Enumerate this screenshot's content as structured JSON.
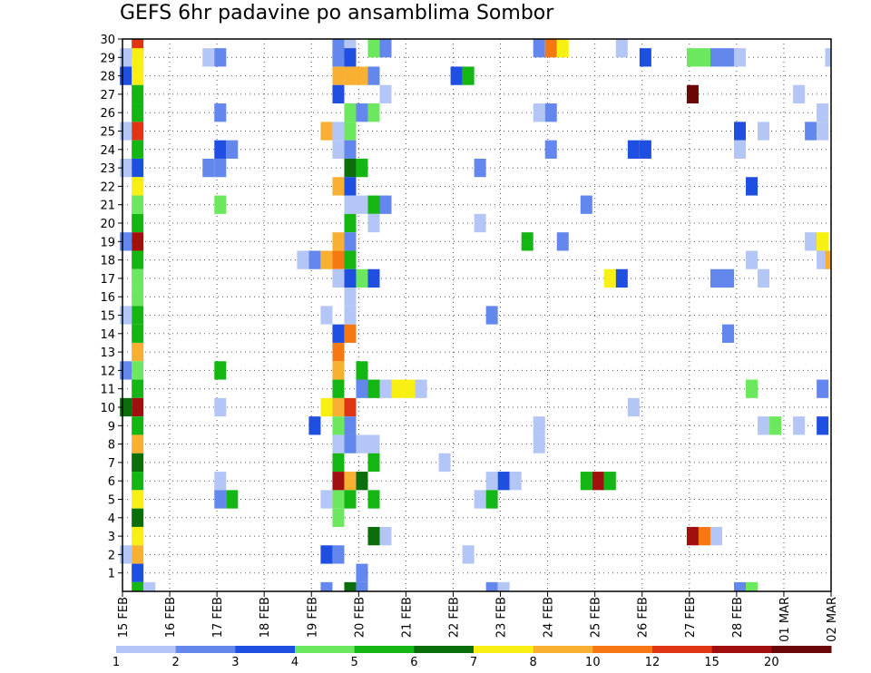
{
  "chart_data": {
    "type": "heatmap",
    "title": "GEFS 6hr padavine po ansamblima Sombor",
    "x_tick_labels": [
      "15 FEB",
      "16 FEB",
      "17 FEB",
      "18 FEB",
      "19 FEB",
      "20 FEB",
      "21 FEB",
      "22 FEB",
      "23 FEB",
      "24 FEB",
      "25 FEB",
      "26 FEB",
      "27 FEB",
      "28 FEB",
      "01 MAR",
      "02 MAR"
    ],
    "xlim": [
      0,
      15
    ],
    "y_tick_labels": [
      "1",
      "2",
      "3",
      "4",
      "5",
      "6",
      "7",
      "8",
      "9",
      "10",
      "11",
      "12",
      "13",
      "14",
      "15",
      "16",
      "17",
      "18",
      "19",
      "20",
      "21",
      "22",
      "23",
      "24",
      "25",
      "26",
      "27",
      "28",
      "29",
      "30"
    ],
    "ylim": [
      0,
      30
    ],
    "grid": "dotted",
    "colorbar": {
      "labels": [
        "1",
        "2",
        "3",
        "4",
        "5",
        "6",
        "7",
        "8",
        "10",
        "12",
        "15",
        "20"
      ],
      "colors": [
        "#b3c6f5",
        "#6487ee",
        "#1f4fe0",
        "#6ce85e",
        "#14b614",
        "#0a6e0a",
        "#f7f012",
        "#f9b032",
        "#f57812",
        "#e03512",
        "#a10f0f",
        "#6a0707"
      ]
    },
    "cells": [
      [
        0.32,
        30,
        9
      ],
      [
        0.32,
        29,
        6
      ],
      [
        0.32,
        28,
        6
      ],
      [
        0.32,
        27,
        4
      ],
      [
        0.32,
        26,
        4
      ],
      [
        0.32,
        25,
        9
      ],
      [
        0.32,
        24,
        4
      ],
      [
        0.32,
        23,
        2
      ],
      [
        0.32,
        22,
        6
      ],
      [
        0.32,
        21,
        3
      ],
      [
        0.32,
        20,
        4
      ],
      [
        0.32,
        19,
        10
      ],
      [
        0.32,
        18,
        4
      ],
      [
        0.32,
        17,
        3
      ],
      [
        0.32,
        16,
        3
      ],
      [
        0.32,
        15,
        4
      ],
      [
        0.32,
        14,
        4
      ],
      [
        0.32,
        13,
        7
      ],
      [
        0.32,
        12,
        3
      ],
      [
        0.32,
        11,
        4
      ],
      [
        0.32,
        10,
        10
      ],
      [
        0.32,
        9,
        4
      ],
      [
        0.32,
        8,
        7
      ],
      [
        0.32,
        7,
        5
      ],
      [
        0.32,
        6,
        4
      ],
      [
        0.32,
        5,
        6
      ],
      [
        0.32,
        4,
        5
      ],
      [
        0.32,
        3,
        6
      ],
      [
        0.32,
        2,
        7
      ],
      [
        0.32,
        1,
        2
      ],
      [
        0.32,
        0,
        4
      ],
      [
        0.07,
        29,
        0
      ],
      [
        0.07,
        28,
        2
      ],
      [
        0.07,
        25,
        0
      ],
      [
        0.07,
        23,
        0
      ],
      [
        0.07,
        19,
        1
      ],
      [
        0.07,
        15,
        0
      ],
      [
        0.07,
        12,
        1
      ],
      [
        0.07,
        10,
        5
      ],
      [
        0.07,
        2,
        0
      ],
      [
        0.57,
        0,
        0
      ],
      [
        1.82,
        29,
        0
      ],
      [
        2.07,
        29,
        1
      ],
      [
        1.82,
        23,
        1
      ],
      [
        2.07,
        23,
        1
      ],
      [
        2.07,
        24,
        2
      ],
      [
        2.32,
        24,
        1
      ],
      [
        2.07,
        26,
        1
      ],
      [
        2.07,
        21,
        3
      ],
      [
        2.07,
        12,
        4
      ],
      [
        2.07,
        10,
        0
      ],
      [
        2.07,
        6,
        0
      ],
      [
        2.07,
        5,
        1
      ],
      [
        2.32,
        5,
        4
      ],
      [
        3.82,
        18,
        0
      ],
      [
        4.07,
        18,
        1
      ],
      [
        4.32,
        18,
        7
      ],
      [
        4.57,
        18,
        8
      ],
      [
        4.82,
        18,
        4
      ],
      [
        4.57,
        19,
        7
      ],
      [
        4.57,
        22,
        7
      ],
      [
        4.32,
        25,
        7
      ],
      [
        4.57,
        25,
        0
      ],
      [
        4.32,
        10,
        6
      ],
      [
        4.57,
        10,
        7
      ],
      [
        4.82,
        10,
        9
      ],
      [
        4.07,
        9,
        2
      ],
      [
        4.32,
        5,
        0
      ],
      [
        4.57,
        5,
        3
      ],
      [
        4.32,
        2,
        2
      ],
      [
        4.57,
        2,
        1
      ],
      [
        4.32,
        15,
        0
      ],
      [
        4.57,
        12,
        7
      ],
      [
        4.57,
        14,
        2
      ],
      [
        4.82,
        14,
        8
      ],
      [
        4.57,
        13,
        8
      ],
      [
        4.32,
        0,
        1
      ],
      [
        4.57,
        30,
        1
      ],
      [
        4.82,
        30,
        0
      ],
      [
        4.57,
        29,
        1
      ],
      [
        4.82,
        29,
        2
      ],
      [
        4.57,
        28,
        7
      ],
      [
        4.82,
        28,
        7
      ],
      [
        5.07,
        28,
        7
      ],
      [
        5.32,
        28,
        1
      ],
      [
        4.57,
        27,
        2
      ],
      [
        4.82,
        26,
        3
      ],
      [
        5.07,
        26,
        1
      ],
      [
        5.32,
        26,
        3
      ],
      [
        4.82,
        25,
        3
      ],
      [
        4.57,
        24,
        0
      ],
      [
        4.82,
        24,
        1
      ],
      [
        4.82,
        23,
        5
      ],
      [
        5.07,
        23,
        4
      ],
      [
        4.82,
        22,
        2
      ],
      [
        4.82,
        21,
        0
      ],
      [
        5.07,
        21,
        0
      ],
      [
        5.32,
        21,
        4
      ],
      [
        5.57,
        21,
        1
      ],
      [
        4.82,
        20,
        4
      ],
      [
        5.32,
        20,
        0
      ],
      [
        4.82,
        19,
        1
      ],
      [
        4.82,
        17,
        2
      ],
      [
        5.07,
        17,
        3
      ],
      [
        5.32,
        17,
        2
      ],
      [
        4.57,
        17,
        0
      ],
      [
        4.82,
        16,
        0
      ],
      [
        4.82,
        15,
        0
      ],
      [
        4.57,
        11,
        4
      ],
      [
        4.82,
        9,
        1
      ],
      [
        4.57,
        9,
        3
      ],
      [
        4.57,
        8,
        0
      ],
      [
        4.82,
        8,
        1
      ],
      [
        5.07,
        8,
        0
      ],
      [
        5.32,
        8,
        0
      ],
      [
        4.57,
        7,
        4
      ],
      [
        5.32,
        7,
        4
      ],
      [
        4.57,
        6,
        10
      ],
      [
        4.82,
        6,
        7
      ],
      [
        5.07,
        6,
        5
      ],
      [
        4.82,
        5,
        4
      ],
      [
        5.32,
        5,
        4
      ],
      [
        4.57,
        4,
        3
      ],
      [
        5.32,
        3,
        5
      ],
      [
        5.57,
        3,
        0
      ],
      [
        5.07,
        1,
        1
      ],
      [
        5.07,
        0,
        1
      ],
      [
        4.82,
        0,
        5
      ],
      [
        5.07,
        11,
        1
      ],
      [
        5.07,
        12,
        4
      ],
      [
        5.32,
        30,
        3
      ],
      [
        5.57,
        30,
        1
      ],
      [
        5.57,
        27,
        0
      ],
      [
        5.32,
        11,
        4
      ],
      [
        5.57,
        11,
        0
      ],
      [
        5.82,
        11,
        6
      ],
      [
        6.07,
        11,
        6
      ],
      [
        6.32,
        11,
        0
      ],
      [
        7.07,
        28,
        2
      ],
      [
        7.32,
        28,
        4
      ],
      [
        6.82,
        7,
        0
      ],
      [
        7.57,
        23,
        1
      ],
      [
        7.57,
        20,
        0
      ],
      [
        7.82,
        15,
        1
      ],
      [
        7.82,
        6,
        0
      ],
      [
        8.07,
        6,
        2
      ],
      [
        8.32,
        6,
        0
      ],
      [
        7.57,
        5,
        0
      ],
      [
        7.82,
        5,
        4
      ],
      [
        7.32,
        2,
        0
      ],
      [
        7.82,
        0,
        1
      ],
      [
        8.07,
        0,
        0
      ],
      [
        8.82,
        30,
        1
      ],
      [
        9.07,
        30,
        8
      ],
      [
        9.32,
        30,
        6
      ],
      [
        8.57,
        19,
        4
      ],
      [
        9.32,
        19,
        1
      ],
      [
        8.82,
        26,
        0
      ],
      [
        9.07,
        26,
        1
      ],
      [
        9.07,
        24,
        1
      ],
      [
        8.82,
        9,
        0
      ],
      [
        8.82,
        8,
        0
      ],
      [
        9.82,
        6,
        4
      ],
      [
        10.07,
        6,
        10
      ],
      [
        10.32,
        6,
        4
      ],
      [
        9.82,
        21,
        1
      ],
      [
        10.32,
        17,
        6
      ],
      [
        10.57,
        17,
        2
      ],
      [
        10.57,
        30,
        0
      ],
      [
        11.07,
        29,
        2
      ],
      [
        11.07,
        24,
        2
      ],
      [
        10.82,
        24,
        2
      ],
      [
        10.82,
        10,
        0
      ],
      [
        12.07,
        29,
        3
      ],
      [
        12.32,
        29,
        3
      ],
      [
        12.57,
        29,
        1
      ],
      [
        12.82,
        29,
        1
      ],
      [
        13.07,
        29,
        0
      ],
      [
        12.07,
        27,
        11
      ],
      [
        12.57,
        17,
        1
      ],
      [
        12.82,
        17,
        1
      ],
      [
        13.07,
        25,
        2
      ],
      [
        13.07,
        24,
        0
      ],
      [
        13.32,
        22,
        2
      ],
      [
        13.32,
        18,
        0
      ],
      [
        13.57,
        25,
        0
      ],
      [
        13.57,
        17,
        0
      ],
      [
        12.82,
        14,
        1
      ],
      [
        13.32,
        11,
        3
      ],
      [
        13.57,
        9,
        0
      ],
      [
        13.82,
        9,
        3
      ],
      [
        12.07,
        3,
        10
      ],
      [
        12.32,
        3,
        8
      ],
      [
        12.57,
        3,
        0
      ],
      [
        13.07,
        0,
        1
      ],
      [
        13.32,
        0,
        3
      ],
      [
        14.32,
        27,
        0
      ],
      [
        14.57,
        25,
        1
      ],
      [
        14.82,
        25,
        0
      ],
      [
        14.82,
        26,
        0
      ],
      [
        14.57,
        19,
        0
      ],
      [
        14.82,
        19,
        6
      ],
      [
        14.82,
        18,
        0
      ],
      [
        15.0,
        18,
        7
      ],
      [
        14.82,
        11,
        1
      ],
      [
        14.32,
        9,
        0
      ],
      [
        14.82,
        9,
        2
      ],
      [
        15.0,
        29,
        0
      ]
    ]
  }
}
